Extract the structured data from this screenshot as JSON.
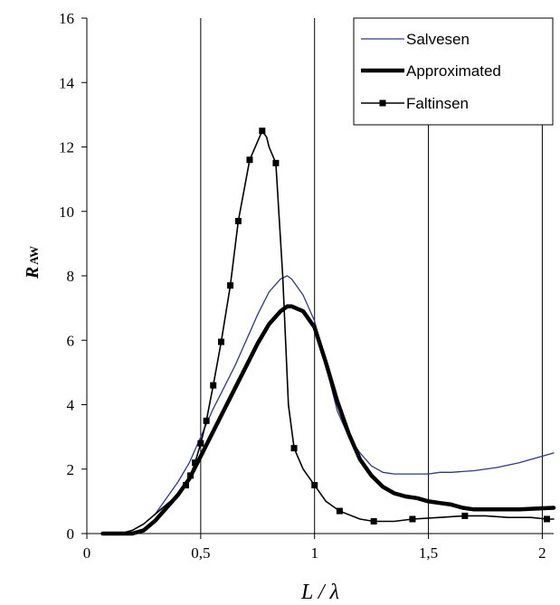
{
  "chart_data": {
    "type": "line",
    "xlabel": "L / λ",
    "ylabel_main": "R",
    "ylabel_sub": "AW",
    "xlim": [
      0,
      2.05
    ],
    "ylim": [
      0,
      16
    ],
    "x_ticks": [
      0,
      0.5,
      1,
      1.5,
      2
    ],
    "x_tick_labels": [
      "0",
      "0,5",
      "1",
      "1,5",
      "2"
    ],
    "y_ticks": [
      0,
      2,
      4,
      6,
      8,
      10,
      12,
      14,
      16
    ],
    "y_tick_labels": [
      "0",
      "2",
      "4",
      "6",
      "8",
      "10",
      "12",
      "14",
      "16"
    ],
    "grid": "vertical",
    "legend_position": "top-right",
    "series": [
      {
        "name": "Salvesen",
        "color": "#2e3a87",
        "style": "thin",
        "points": [
          [
            0.07,
            0
          ],
          [
            0.15,
            0
          ],
          [
            0.2,
            0.1
          ],
          [
            0.25,
            0.3
          ],
          [
            0.3,
            0.6
          ],
          [
            0.35,
            1.1
          ],
          [
            0.4,
            1.6
          ],
          [
            0.45,
            2.2
          ],
          [
            0.5,
            3
          ],
          [
            0.55,
            3.8
          ],
          [
            0.6,
            4.5
          ],
          [
            0.65,
            5.2
          ],
          [
            0.7,
            6
          ],
          [
            0.75,
            6.8
          ],
          [
            0.8,
            7.5
          ],
          [
            0.85,
            7.9
          ],
          [
            0.88,
            8
          ],
          [
            0.9,
            7.9
          ],
          [
            0.95,
            7.4
          ],
          [
            1.0,
            6.6
          ],
          [
            1.05,
            5.2
          ],
          [
            1.1,
            3.8
          ],
          [
            1.15,
            3
          ],
          [
            1.2,
            2.5
          ],
          [
            1.25,
            2.1
          ],
          [
            1.3,
            1.9
          ],
          [
            1.35,
            1.85
          ],
          [
            1.4,
            1.85
          ],
          [
            1.5,
            1.85
          ],
          [
            1.55,
            1.9
          ],
          [
            1.6,
            1.9
          ],
          [
            1.7,
            1.95
          ],
          [
            1.8,
            2.05
          ],
          [
            1.9,
            2.2
          ],
          [
            2.05,
            2.5
          ]
        ]
      },
      {
        "name": "Approximated",
        "color": "#000000",
        "style": "thick",
        "points": [
          [
            0.07,
            0
          ],
          [
            0.2,
            0
          ],
          [
            0.25,
            0.1
          ],
          [
            0.3,
            0.4
          ],
          [
            0.35,
            0.8
          ],
          [
            0.4,
            1.2
          ],
          [
            0.45,
            1.7
          ],
          [
            0.5,
            2.4
          ],
          [
            0.55,
            3.1
          ],
          [
            0.6,
            3.8
          ],
          [
            0.65,
            4.5
          ],
          [
            0.7,
            5.2
          ],
          [
            0.75,
            5.9
          ],
          [
            0.8,
            6.5
          ],
          [
            0.85,
            6.9
          ],
          [
            0.88,
            7.05
          ],
          [
            0.9,
            7.05
          ],
          [
            0.95,
            6.9
          ],
          [
            1.0,
            6.4
          ],
          [
            1.05,
            5.3
          ],
          [
            1.1,
            4.1
          ],
          [
            1.15,
            3.1
          ],
          [
            1.2,
            2.3
          ],
          [
            1.25,
            1.8
          ],
          [
            1.3,
            1.45
          ],
          [
            1.35,
            1.25
          ],
          [
            1.4,
            1.15
          ],
          [
            1.45,
            1.1
          ],
          [
            1.5,
            1
          ],
          [
            1.55,
            0.95
          ],
          [
            1.6,
            0.9
          ],
          [
            1.65,
            0.8
          ],
          [
            1.7,
            0.75
          ],
          [
            1.8,
            0.75
          ],
          [
            1.9,
            0.75
          ],
          [
            2.05,
            0.8
          ]
        ]
      },
      {
        "name": "Faltinsen",
        "color": "#000000",
        "style": "marker",
        "points": [
          [
            0.07,
            0
          ],
          [
            0.15,
            0
          ],
          [
            0.2,
            0.1
          ],
          [
            0.25,
            0.3
          ],
          [
            0.3,
            0.6
          ],
          [
            0.35,
            0.9
          ],
          [
            0.4,
            1.2
          ],
          [
            0.435,
            1.5
          ],
          [
            0.455,
            1.8
          ],
          [
            0.475,
            2.2
          ],
          [
            0.5,
            2.8
          ],
          [
            0.525,
            3.5
          ],
          [
            0.555,
            4.6
          ],
          [
            0.59,
            5.95
          ],
          [
            0.63,
            7.7
          ],
          [
            0.665,
            9.7
          ],
          [
            0.715,
            11.6
          ],
          [
            0.77,
            12.5
          ],
          [
            0.79,
            12.3
          ],
          [
            0.8,
            12
          ],
          [
            0.83,
            11.5
          ],
          [
            0.86,
            8
          ],
          [
            0.885,
            4
          ],
          [
            0.91,
            2.65
          ],
          [
            0.95,
            2
          ],
          [
            1.0,
            1.5
          ],
          [
            1.05,
            1
          ],
          [
            1.11,
            0.7
          ],
          [
            1.2,
            0.45
          ],
          [
            1.26,
            0.38
          ],
          [
            1.35,
            0.38
          ],
          [
            1.43,
            0.45
          ],
          [
            1.55,
            0.5
          ],
          [
            1.66,
            0.55
          ],
          [
            1.75,
            0.55
          ],
          [
            1.85,
            0.5
          ],
          [
            1.95,
            0.5
          ],
          [
            2.02,
            0.45
          ],
          [
            2.05,
            0.45
          ]
        ]
      }
    ],
    "faltinsen_markers": [
      [
        0.435,
        1.5
      ],
      [
        0.455,
        1.8
      ],
      [
        0.475,
        2.2
      ],
      [
        0.5,
        2.8
      ],
      [
        0.525,
        3.5
      ],
      [
        0.555,
        4.6
      ],
      [
        0.59,
        5.95
      ],
      [
        0.63,
        7.7
      ],
      [
        0.665,
        9.7
      ],
      [
        0.715,
        11.6
      ],
      [
        0.77,
        12.5
      ],
      [
        0.83,
        11.5
      ],
      [
        0.91,
        2.65
      ],
      [
        1.0,
        1.5
      ],
      [
        1.11,
        0.7
      ],
      [
        1.26,
        0.38
      ],
      [
        1.43,
        0.45
      ],
      [
        1.66,
        0.55
      ],
      [
        2.02,
        0.45
      ]
    ]
  }
}
